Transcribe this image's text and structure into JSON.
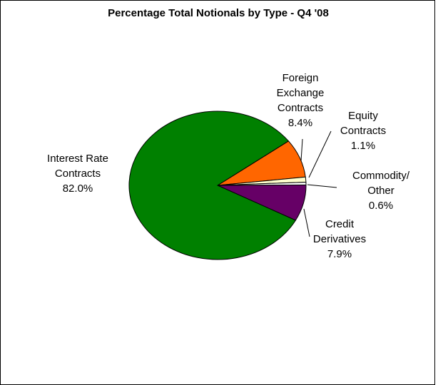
{
  "chart_data": {
    "type": "pie",
    "title": "Percentage Total Notionals by Type - Q4 '08",
    "slices": [
      {
        "name": "Interest Rate Contracts",
        "label_lines": [
          "Interest Rate",
          "Contracts"
        ],
        "value": 82.0,
        "value_label": "82.0%",
        "color": "#008000"
      },
      {
        "name": "Foreign Exchange Contracts",
        "label_lines": [
          "Foreign",
          "Exchange",
          "Contracts"
        ],
        "value": 8.4,
        "value_label": "8.4%",
        "color": "#FF6600"
      },
      {
        "name": "Equity Contracts",
        "label_lines": [
          "Equity",
          "Contracts"
        ],
        "value": 1.1,
        "value_label": "1.1%",
        "color": "#FFFFCC"
      },
      {
        "name": "Commodity/Other",
        "label_lines": [
          "Commodity/",
          "Other"
        ],
        "value": 0.6,
        "value_label": "0.6%",
        "color": "#FFFFFF"
      },
      {
        "name": "Credit Derivatives",
        "label_lines": [
          "Credit",
          "Derivatives"
        ],
        "value": 7.9,
        "value_label": "7.9%",
        "color": "#660066"
      }
    ]
  }
}
